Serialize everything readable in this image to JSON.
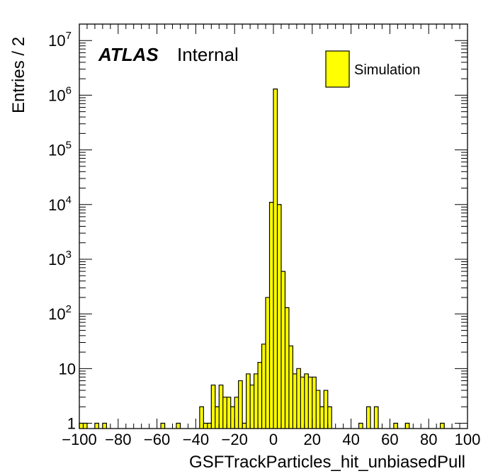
{
  "chart_data": {
    "type": "bar",
    "histogram": true,
    "xlabel": "GSFTrackParticles_hit_unbiasedPull",
    "ylabel": "Entries / 2",
    "xlim": [
      -100,
      100
    ],
    "ylim": [
      0.8,
      20000000
    ],
    "yscale": "log",
    "bin_width": 2,
    "x_ticks": [
      -100,
      -80,
      -60,
      -40,
      -20,
      0,
      20,
      40,
      60,
      80,
      100
    ],
    "x_tick_labels": [
      "−100",
      "−80",
      "−60",
      "−40",
      "−20",
      "0",
      "20",
      "40",
      "60",
      "80",
      "100"
    ],
    "y_ticks": [
      {
        "value": 1,
        "base": "1",
        "exp": ""
      },
      {
        "value": 10,
        "base": "10",
        "exp": ""
      },
      {
        "value": 100,
        "base": "10",
        "exp": "2"
      },
      {
        "value": 1000,
        "base": "10",
        "exp": "3"
      },
      {
        "value": 10000,
        "base": "10",
        "exp": "4"
      },
      {
        "value": 100000,
        "base": "10",
        "exp": "5"
      },
      {
        "value": 1000000,
        "base": "10",
        "exp": "6"
      },
      {
        "value": 10000000,
        "base": "10",
        "exp": "7"
      }
    ],
    "fill_color": "#ffff00",
    "line_color": "#000000",
    "legend": {
      "position": "top-right",
      "entries": [
        "Simulation"
      ]
    },
    "labels": {
      "atlas": "ATLAS",
      "status": "Internal"
    },
    "bins": [
      {
        "x": -100,
        "value": 1
      },
      {
        "x": -98,
        "value": 1
      },
      {
        "x": -92,
        "value": 1
      },
      {
        "x": -88,
        "value": 1
      },
      {
        "x": -58,
        "value": 1
      },
      {
        "x": -50,
        "value": 1
      },
      {
        "x": -38,
        "value": 2
      },
      {
        "x": -36,
        "value": 1
      },
      {
        "x": -34,
        "value": 1
      },
      {
        "x": -32,
        "value": 5
      },
      {
        "x": -30,
        "value": 2
      },
      {
        "x": -28,
        "value": 5
      },
      {
        "x": -26,
        "value": 3
      },
      {
        "x": -24,
        "value": 3
      },
      {
        "x": -22,
        "value": 2
      },
      {
        "x": -20,
        "value": 3
      },
      {
        "x": -18,
        "value": 6
      },
      {
        "x": -16,
        "value": 1
      },
      {
        "x": -14,
        "value": 8
      },
      {
        "x": -12,
        "value": 5
      },
      {
        "x": -10,
        "value": 8
      },
      {
        "x": -8,
        "value": 13
      },
      {
        "x": -6,
        "value": 28
      },
      {
        "x": -4,
        "value": 200
      },
      {
        "x": -2,
        "value": 11000
      },
      {
        "x": 0,
        "value": 1300000
      },
      {
        "x": 2,
        "value": 10000
      },
      {
        "x": 4,
        "value": 600
      },
      {
        "x": 6,
        "value": 130
      },
      {
        "x": 8,
        "value": 26
      },
      {
        "x": 10,
        "value": 8
      },
      {
        "x": 12,
        "value": 10
      },
      {
        "x": 14,
        "value": 7
      },
      {
        "x": 16,
        "value": 8
      },
      {
        "x": 18,
        "value": 7
      },
      {
        "x": 20,
        "value": 7
      },
      {
        "x": 22,
        "value": 4
      },
      {
        "x": 24,
        "value": 2
      },
      {
        "x": 26,
        "value": 4
      },
      {
        "x": 28,
        "value": 2
      },
      {
        "x": 44,
        "value": 1
      },
      {
        "x": 48,
        "value": 2
      },
      {
        "x": 52,
        "value": 2
      },
      {
        "x": 62,
        "value": 1
      },
      {
        "x": 68,
        "value": 1
      },
      {
        "x": 86,
        "value": 1
      }
    ]
  }
}
